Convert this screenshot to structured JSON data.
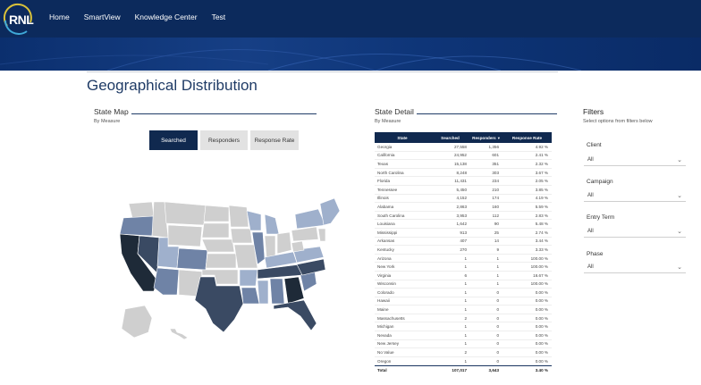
{
  "header": {
    "logo_text": "RNL",
    "nav": [
      "Home",
      "SmartView",
      "Knowledge Center",
      "Test"
    ]
  },
  "page": {
    "title": "Geographical Distribution"
  },
  "state_map": {
    "title": "State Map",
    "subtitle": "By Measure",
    "buttons": [
      {
        "label": "Searched",
        "active": true
      },
      {
        "label": "Responders",
        "active": false
      },
      {
        "label": "Response Rate",
        "active": false
      }
    ]
  },
  "state_detail": {
    "title": "State Detail",
    "subtitle": "By Measure",
    "columns": [
      "State",
      "Searched",
      "Responders",
      "Response Rate"
    ],
    "rows": [
      [
        "Georgia",
        "27,558",
        "1,356",
        "4.92 %"
      ],
      [
        "California",
        "24,952",
        "601",
        "2.41 %"
      ],
      [
        "Texas",
        "15,138",
        "351",
        "2.32 %"
      ],
      [
        "North Carolina",
        "8,248",
        "303",
        "3.67 %"
      ],
      [
        "Florida",
        "11,431",
        "234",
        "2.05 %"
      ],
      [
        "Tennessee",
        "5,450",
        "210",
        "3.85 %"
      ],
      [
        "Illinois",
        "4,152",
        "174",
        "4.19 %"
      ],
      [
        "Alabama",
        "2,863",
        "160",
        "5.59 %"
      ],
      [
        "South Carolina",
        "3,953",
        "112",
        "2.83 %"
      ],
      [
        "Louisiana",
        "1,642",
        "90",
        "5.48 %"
      ],
      [
        "Mississippi",
        "913",
        "25",
        "2.74 %"
      ],
      [
        "Arkansas",
        "407",
        "14",
        "3.44 %"
      ],
      [
        "Kentucky",
        "270",
        "9",
        "3.33 %"
      ],
      [
        "Arizona",
        "1",
        "1",
        "100.00 %"
      ],
      [
        "New York",
        "1",
        "1",
        "100.00 %"
      ],
      [
        "Virginia",
        "6",
        "1",
        "16.67 %"
      ],
      [
        "Wisconsin",
        "1",
        "1",
        "100.00 %"
      ],
      [
        "Colorado",
        "1",
        "0",
        "0.00 %"
      ],
      [
        "Hawaii",
        "1",
        "0",
        "0.00 %"
      ],
      [
        "Maine",
        "1",
        "0",
        "0.00 %"
      ],
      [
        "Massachusetts",
        "2",
        "0",
        "0.00 %"
      ],
      [
        "Michigan",
        "1",
        "0",
        "0.00 %"
      ],
      [
        "Nevada",
        "1",
        "0",
        "0.00 %"
      ],
      [
        "New Jersey",
        "1",
        "0",
        "0.00 %"
      ],
      [
        "No Value",
        "2",
        "0",
        "0.00 %"
      ],
      [
        "Oregon",
        "1",
        "0",
        "0.00 %"
      ]
    ],
    "total": [
      "Total",
      "107,017",
      "3,643",
      "3.40 %"
    ]
  },
  "filters": {
    "title": "Filters",
    "subtitle": "Select options from filters below",
    "items": [
      {
        "label": "Client",
        "value": "All"
      },
      {
        "label": "Campaign",
        "value": "All"
      },
      {
        "label": "Entry Term",
        "value": "All"
      },
      {
        "label": "Phase",
        "value": "All"
      }
    ]
  },
  "colors": {
    "header": "#0c2a5c",
    "accent": "#10294f",
    "map_darkest": "#1e2a38",
    "map_dark": "#3a4a63",
    "map_mid": "#6f83a6",
    "map_light": "#9fb0cc",
    "map_none": "#cfcfcf"
  }
}
